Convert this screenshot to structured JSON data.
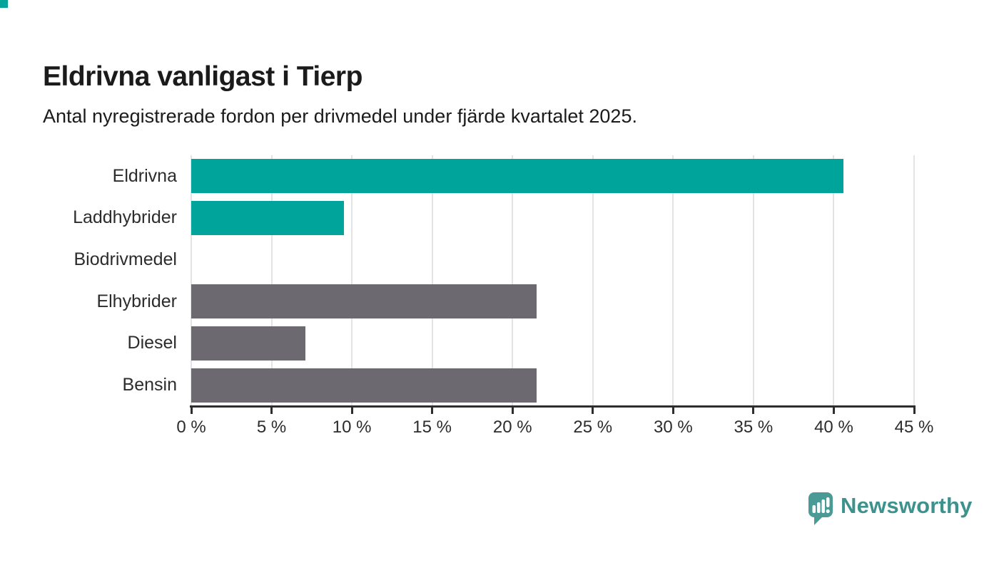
{
  "header": {
    "title": "Eldrivna vanligast i Tierp",
    "subtitle": "Antal nyregistrerade fordon per drivmedel under fjärde kvartalet 2025."
  },
  "chart_data": {
    "type": "bar",
    "orientation": "horizontal",
    "title": "Eldrivna vanligast i Tierp",
    "subtitle": "Antal nyregistrerade fordon per drivmedel under fjärde kvartalet 2025.",
    "categories": [
      "Eldrivna",
      "Laddhybrider",
      "Biodrivmedel",
      "Elhybrider",
      "Diesel",
      "Bensin"
    ],
    "values": [
      40.6,
      9.5,
      0,
      21.5,
      7.1,
      21.5
    ],
    "unit": "%",
    "bar_colors": [
      "#00a49a",
      "#00a49a",
      "#00a49a",
      "#6c6a70",
      "#6c6a70",
      "#6c6a70"
    ],
    "xlabel": "",
    "ylabel": "",
    "xlim": [
      0,
      45
    ],
    "x_tick_step": 5,
    "x_tick_labels": [
      "0 %",
      "5 %",
      "10 %",
      "15 %",
      "20 %",
      "25 %",
      "30 %",
      "35 %",
      "40 %",
      "45 %"
    ],
    "grid": true,
    "gridline_color": "#e3e3e3",
    "legend": "none"
  },
  "colors": {
    "accent_teal": "#00a49a",
    "neutral_gray": "#6c6a70",
    "axis": "#2d2d2d",
    "text": "#1b1b1b"
  },
  "branding": {
    "logo_text": "Newsworthy",
    "logo_text_color": "#3d928d",
    "logo_icon_color": "#4a9a95",
    "logo_icon_name": "newsworthy-bar-chart-bubble-icon"
  }
}
